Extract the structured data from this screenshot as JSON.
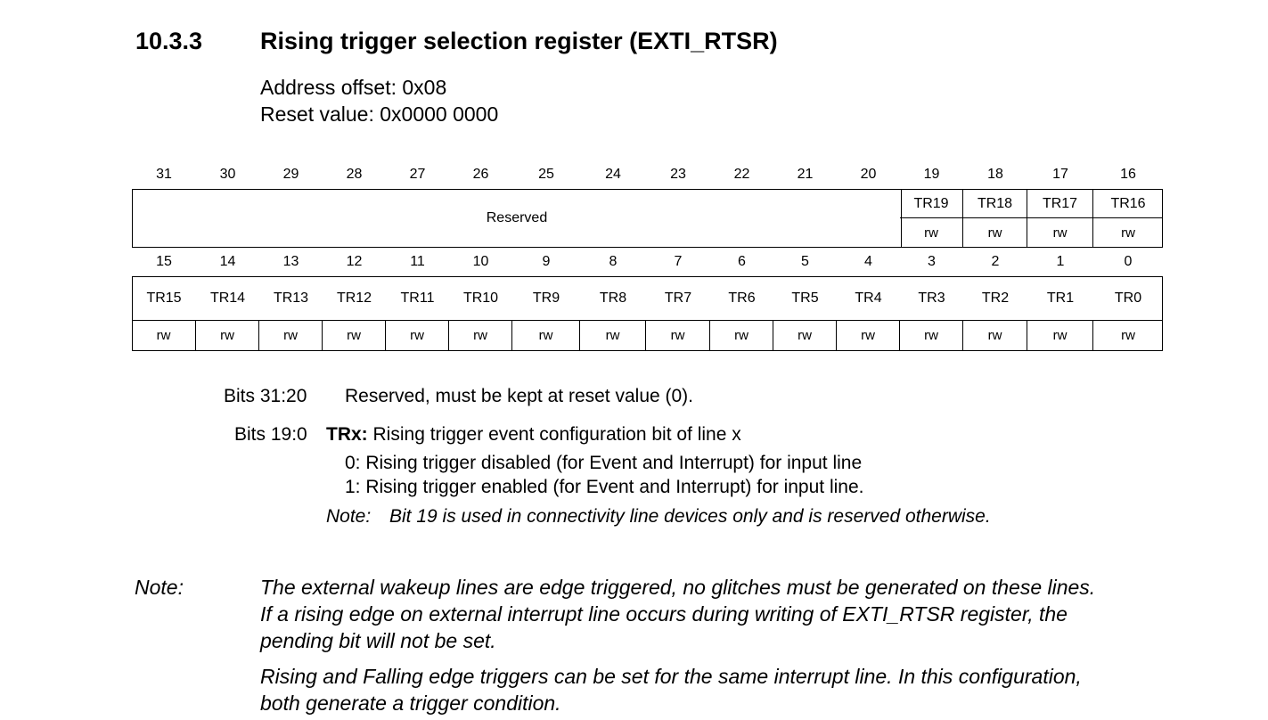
{
  "section": {
    "number": "10.3.3",
    "title": "Rising trigger selection register (EXTI_RTSR)"
  },
  "address_offset": "Address offset: 0x08",
  "reset_value": "Reset value: 0x0000 0000",
  "register": {
    "upper_bits": [
      "31",
      "30",
      "29",
      "28",
      "27",
      "26",
      "25",
      "24",
      "23",
      "22",
      "21",
      "20",
      "19",
      "18",
      "17",
      "16"
    ],
    "upper_reserved_label": "Reserved",
    "upper_fields": [
      "TR19",
      "TR18",
      "TR17",
      "TR16"
    ],
    "upper_access": [
      "rw",
      "rw",
      "rw",
      "rw"
    ],
    "lower_bits": [
      "15",
      "14",
      "13",
      "12",
      "11",
      "10",
      "9",
      "8",
      "7",
      "6",
      "5",
      "4",
      "3",
      "2",
      "1",
      "0"
    ],
    "lower_fields": [
      "TR15",
      "TR14",
      "TR13",
      "TR12",
      "TR11",
      "TR10",
      "TR9",
      "TR8",
      "TR7",
      "TR6",
      "TR5",
      "TR4",
      "TR3",
      "TR2",
      "TR1",
      "TR0"
    ],
    "lower_access": [
      "rw",
      "rw",
      "rw",
      "rw",
      "rw",
      "rw",
      "rw",
      "rw",
      "rw",
      "rw",
      "rw",
      "rw",
      "rw",
      "rw",
      "rw",
      "rw"
    ]
  },
  "descriptions": {
    "reserved_bits": "Bits 31:20",
    "reserved_text": "Reserved, must be kept at reset value (0).",
    "tr_bits": "Bits 19:0",
    "tr_name": "TRx:",
    "tr_text": "Rising trigger event configuration bit of line x",
    "tr_val0": "0: Rising trigger disabled (for Event and Interrupt) for input line",
    "tr_val1": "1: Rising trigger enabled (for Event and Interrupt) for input line.",
    "tr_note_label": "Note:",
    "tr_note_text": "Bit 19 is used in connectivity line devices only and is reserved otherwise."
  },
  "note": {
    "label": "Note:",
    "lines": [
      "The external wakeup lines are edge triggered, no glitches must be generated on these lines.",
      "If a rising edge on external interrupt line occurs during writing of EXTI_RTSR register, the",
      "pending bit will not be set.",
      "Rising and Falling edge triggers can be set for the same interrupt line. In this configuration,",
      "both generate a trigger condition."
    ]
  }
}
